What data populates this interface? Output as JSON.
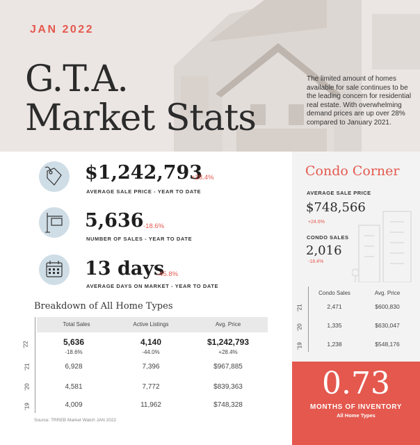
{
  "header": {
    "month": "JAN 2022",
    "title_line1": "G.T.A.",
    "title_line2": "Market Stats",
    "intro": "The limited amount of homes available for sale continues to be the leading concern for residential real estate.  With overwhelming demand prices are up over 28% compared to January 2021."
  },
  "stats": [
    {
      "icon": "price-tag-icon",
      "value": "$1,242,793",
      "change": "+28.4%",
      "label": "AVERAGE SALE PRICE - YEAR TO DATE"
    },
    {
      "icon": "sign-post-icon",
      "value": "5,636",
      "change": "-18.6%",
      "label": "NUMBER OF SALES - YEAR TO DATE"
    },
    {
      "icon": "calendar-icon",
      "value": "13 days",
      "change": "-45.8%",
      "label": "AVERAGE DAYS ON MARKET - YEAR TO DATE"
    }
  ],
  "breakdown": {
    "title": "Breakdown of All Home Types",
    "columns": [
      "Total Sales",
      "Active Listings",
      "Avg. Price"
    ],
    "rows": [
      {
        "year": "'22",
        "total_sales": "5,636",
        "active_listings": "4,140",
        "avg_price": "$1,242,793",
        "total_sales_change": "-18.6%",
        "active_listings_change": "-44.0%",
        "avg_price_change": "+28.4%"
      },
      {
        "year": "'21",
        "total_sales": "6,928",
        "active_listings": "7,396",
        "avg_price": "$967,885"
      },
      {
        "year": "'20",
        "total_sales": "4,581",
        "active_listings": "7,772",
        "avg_price": "$839,363"
      },
      {
        "year": "'19",
        "total_sales": "4,009",
        "active_listings": "11,962",
        "avg_price": "$748,328"
      }
    ],
    "source": "Source: TRREB Market Watch JAN 2022"
  },
  "condo": {
    "title": "Condo Corner",
    "avg_price_label": "AVERAGE SALE PRICE",
    "avg_price_value": "$748,566",
    "avg_price_change": "+24.6%",
    "sales_label": "CONDO SALES",
    "sales_value": "2,016",
    "sales_change": "-18.4%",
    "columns": [
      "Condo Sales",
      "Avg. Price"
    ],
    "rows": [
      {
        "year": "'21",
        "sales": "2,471",
        "price": "$600,830"
      },
      {
        "year": "'20",
        "sales": "1,335",
        "price": "$630,047"
      },
      {
        "year": "'19",
        "sales": "1,238",
        "price": "$548,176"
      }
    ]
  },
  "months_inventory": {
    "value": "0.73",
    "label": "MONTHS OF INVENTORY",
    "sub": "All Home Types"
  },
  "colors": {
    "accent": "#e4584e",
    "icon_bg": "#cfdde6",
    "panel": "#f3f3f3"
  }
}
